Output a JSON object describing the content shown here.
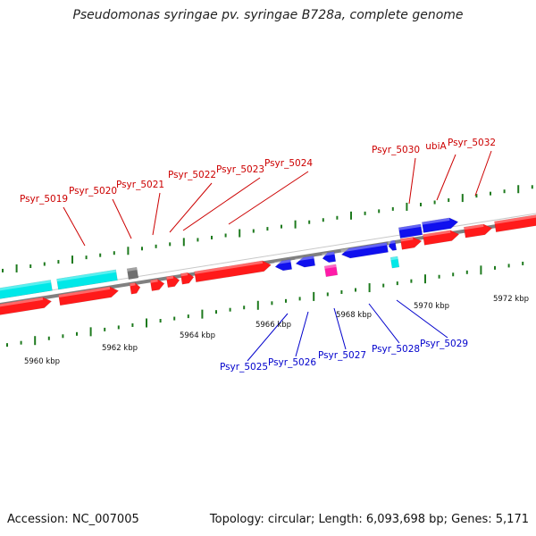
{
  "title": "Pseudomonas syringae pv. syringae B728a, complete genome",
  "footer": {
    "accession": "Accession: NC_007005",
    "summary": "Topology: circular; Length: 6,093,698 bp; Genes: 5,171"
  },
  "colors": {
    "forward_gene": "#ff1a1a",
    "reverse_gene": "#1010ee",
    "cyan_feature": "#00e8e8",
    "pink_feature": "#ff1aa8",
    "gray_feature": "#707070",
    "tick": "#1e7a1e",
    "axis": "#808080",
    "label_forward": "#cc0000",
    "label_reverse": "#0000cc"
  },
  "axis": {
    "kbp_labels": [
      "5960 kbp",
      "5962 kbp",
      "5964 kbp",
      "5966 kbp",
      "5968 kbp",
      "5970 kbp",
      "5972 kbp"
    ]
  },
  "labels": {
    "top": [
      "Psyr_5019",
      "Psyr_5020",
      "Psyr_5021",
      "Psyr_5022",
      "Psyr_5023",
      "Psyr_5024",
      "Psyr_5030",
      "ubiA",
      "Psyr_5032"
    ],
    "bottom": [
      "Psyr_5025",
      "Psyr_5026",
      "Psyr_5027",
      "Psyr_5028",
      "Psyr_5029"
    ]
  }
}
